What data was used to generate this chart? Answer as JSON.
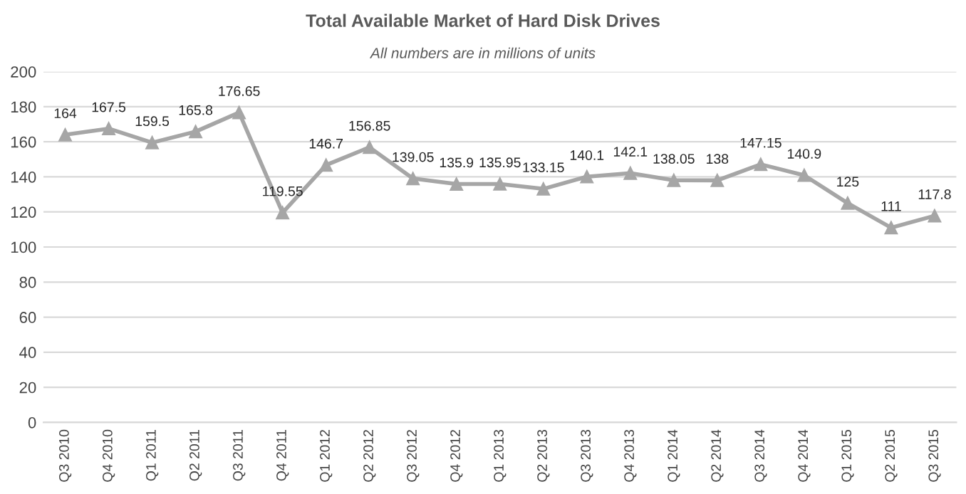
{
  "chart_data": {
    "type": "line",
    "title": "Total Available Market of Hard Disk Drives",
    "subtitle": "All numbers are in millions of units",
    "categories": [
      "Q3 2010",
      "Q4 2010",
      "Q1 2011",
      "Q2 2011",
      "Q3 2011",
      "Q4 2011",
      "Q1 2012",
      "Q2 2012",
      "Q3 2012",
      "Q4 2012",
      "Q1 2013",
      "Q2 2013",
      "Q3 2013",
      "Q4 2013",
      "Q1 2014",
      "Q2 2014",
      "Q3 2014",
      "Q4 2014",
      "Q1 2015",
      "Q2 2015",
      "Q3 2015"
    ],
    "series": [
      {
        "color": "#a6a6a6",
        "values": [
          164,
          167.5,
          159.5,
          165.8,
          176.65,
          119.55,
          146.7,
          156.85,
          139.05,
          135.9,
          135.95,
          133.15,
          140.1,
          142.1,
          138.05,
          138,
          147.15,
          140.9,
          125,
          111,
          117.8
        ]
      }
    ],
    "ylim": [
      0,
      200
    ],
    "yticks": [
      0,
      20,
      40,
      60,
      80,
      100,
      120,
      140,
      160,
      180,
      200
    ],
    "grid": "y",
    "marker": "triangle",
    "line_style": "solid",
    "data_labels": true
  }
}
